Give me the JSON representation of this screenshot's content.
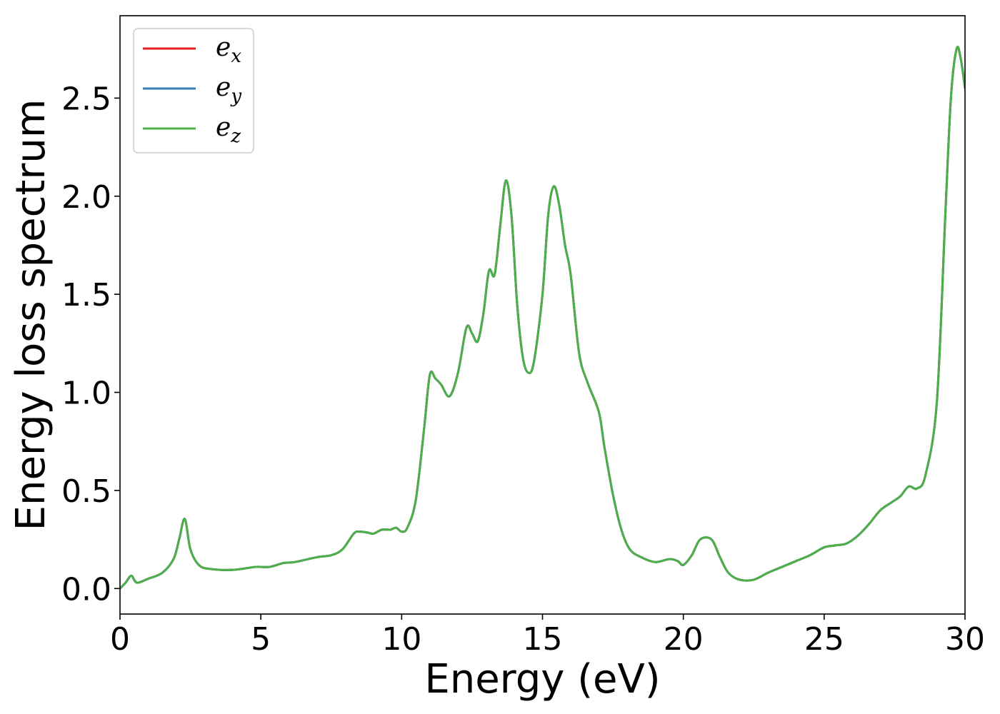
{
  "chart_data": {
    "type": "line",
    "title": "",
    "xlabel": "Energy (eV)",
    "ylabel": "Energy loss spectrum",
    "xlim": [
      0,
      30
    ],
    "ylim": [
      -0.13,
      2.92
    ],
    "xticks": [
      0,
      5,
      10,
      15,
      20,
      25,
      30
    ],
    "xtick_labels": [
      "0",
      "5",
      "10",
      "15",
      "20",
      "25",
      "30"
    ],
    "yticks": [
      0.0,
      0.5,
      1.0,
      1.5,
      2.0,
      2.5
    ],
    "ytick_labels": [
      "0.0",
      "0.5",
      "1.0",
      "1.5",
      "2.0",
      "2.5"
    ],
    "grid": false,
    "legend_position": "top-left",
    "x": [
      0,
      0.2,
      0.4,
      0.6,
      1.0,
      1.5,
      1.9,
      2.1,
      2.3,
      2.5,
      2.8,
      3.2,
      4.0,
      4.8,
      5.3,
      5.8,
      6.2,
      7.0,
      7.5,
      7.9,
      8.3,
      8.5,
      8.8,
      9.0,
      9.3,
      9.6,
      9.8,
      10.0,
      10.2,
      10.5,
      10.8,
      11.0,
      11.2,
      11.4,
      11.7,
      12.0,
      12.3,
      12.5,
      12.7,
      12.9,
      13.1,
      13.3,
      13.5,
      13.7,
      13.9,
      14.1,
      14.3,
      14.5,
      14.7,
      15.0,
      15.2,
      15.4,
      15.6,
      15.8,
      16.0,
      16.3,
      16.6,
      17.0,
      17.2,
      17.5,
      17.8,
      18.1,
      18.5,
      19.0,
      19.5,
      19.8,
      20.0,
      20.3,
      20.6,
      21.0,
      21.3,
      21.6,
      22.0,
      22.5,
      23.0,
      23.5,
      24.0,
      24.5,
      25.0,
      25.4,
      25.8,
      26.2,
      26.6,
      27.0,
      27.4,
      27.7,
      28.0,
      28.3,
      28.6,
      29.0,
      29.3,
      29.5,
      29.7,
      29.85,
      30.0
    ],
    "series": [
      {
        "name": "e_x",
        "label_base": "e",
        "label_sub": "x",
        "color": "#e41a1c",
        "values": [
          0.0,
          0.03,
          0.065,
          0.03,
          0.05,
          0.08,
          0.15,
          0.25,
          0.355,
          0.2,
          0.12,
          0.1,
          0.095,
          0.11,
          0.11,
          0.13,
          0.135,
          0.16,
          0.17,
          0.2,
          0.28,
          0.29,
          0.285,
          0.28,
          0.3,
          0.3,
          0.31,
          0.29,
          0.31,
          0.45,
          0.82,
          1.09,
          1.07,
          1.04,
          0.98,
          1.1,
          1.33,
          1.3,
          1.26,
          1.4,
          1.62,
          1.6,
          1.85,
          2.08,
          1.9,
          1.45,
          1.18,
          1.1,
          1.16,
          1.5,
          1.9,
          2.05,
          1.95,
          1.75,
          1.6,
          1.2,
          1.05,
          0.9,
          0.72,
          0.48,
          0.3,
          0.2,
          0.16,
          0.135,
          0.15,
          0.14,
          0.12,
          0.17,
          0.25,
          0.25,
          0.16,
          0.08,
          0.045,
          0.045,
          0.08,
          0.11,
          0.14,
          0.17,
          0.21,
          0.22,
          0.23,
          0.27,
          0.33,
          0.4,
          0.44,
          0.47,
          0.52,
          0.51,
          0.58,
          0.95,
          1.9,
          2.5,
          2.75,
          2.7,
          2.55
        ]
      },
      {
        "name": "e_y",
        "label_base": "e",
        "label_sub": "y",
        "color": "#377eb8",
        "values": [
          0.0,
          0.03,
          0.065,
          0.03,
          0.05,
          0.08,
          0.15,
          0.25,
          0.355,
          0.2,
          0.12,
          0.1,
          0.095,
          0.11,
          0.11,
          0.13,
          0.135,
          0.16,
          0.17,
          0.2,
          0.28,
          0.29,
          0.285,
          0.28,
          0.3,
          0.3,
          0.31,
          0.29,
          0.31,
          0.45,
          0.82,
          1.09,
          1.07,
          1.04,
          0.98,
          1.1,
          1.33,
          1.3,
          1.26,
          1.4,
          1.62,
          1.6,
          1.85,
          2.08,
          1.9,
          1.45,
          1.18,
          1.1,
          1.16,
          1.5,
          1.9,
          2.05,
          1.95,
          1.75,
          1.6,
          1.2,
          1.05,
          0.9,
          0.72,
          0.48,
          0.3,
          0.2,
          0.16,
          0.135,
          0.15,
          0.14,
          0.12,
          0.17,
          0.25,
          0.25,
          0.16,
          0.08,
          0.045,
          0.045,
          0.08,
          0.11,
          0.14,
          0.17,
          0.21,
          0.22,
          0.23,
          0.27,
          0.33,
          0.4,
          0.44,
          0.47,
          0.52,
          0.51,
          0.58,
          0.95,
          1.9,
          2.5,
          2.75,
          2.7,
          2.55
        ]
      },
      {
        "name": "e_z",
        "label_base": "e",
        "label_sub": "z",
        "color": "#4daf4a",
        "values": [
          0.0,
          0.03,
          0.065,
          0.03,
          0.05,
          0.08,
          0.15,
          0.25,
          0.355,
          0.2,
          0.12,
          0.1,
          0.095,
          0.11,
          0.11,
          0.13,
          0.135,
          0.16,
          0.17,
          0.2,
          0.28,
          0.29,
          0.285,
          0.28,
          0.3,
          0.3,
          0.31,
          0.29,
          0.31,
          0.45,
          0.82,
          1.09,
          1.07,
          1.04,
          0.98,
          1.1,
          1.33,
          1.3,
          1.26,
          1.4,
          1.62,
          1.6,
          1.85,
          2.08,
          1.9,
          1.45,
          1.18,
          1.1,
          1.16,
          1.5,
          1.9,
          2.05,
          1.95,
          1.75,
          1.6,
          1.2,
          1.05,
          0.9,
          0.72,
          0.48,
          0.3,
          0.2,
          0.16,
          0.135,
          0.15,
          0.14,
          0.12,
          0.17,
          0.25,
          0.25,
          0.16,
          0.08,
          0.045,
          0.045,
          0.08,
          0.11,
          0.14,
          0.17,
          0.21,
          0.22,
          0.23,
          0.27,
          0.33,
          0.4,
          0.44,
          0.47,
          0.52,
          0.51,
          0.58,
          0.95,
          1.9,
          2.5,
          2.75,
          2.7,
          2.55
        ]
      }
    ]
  }
}
